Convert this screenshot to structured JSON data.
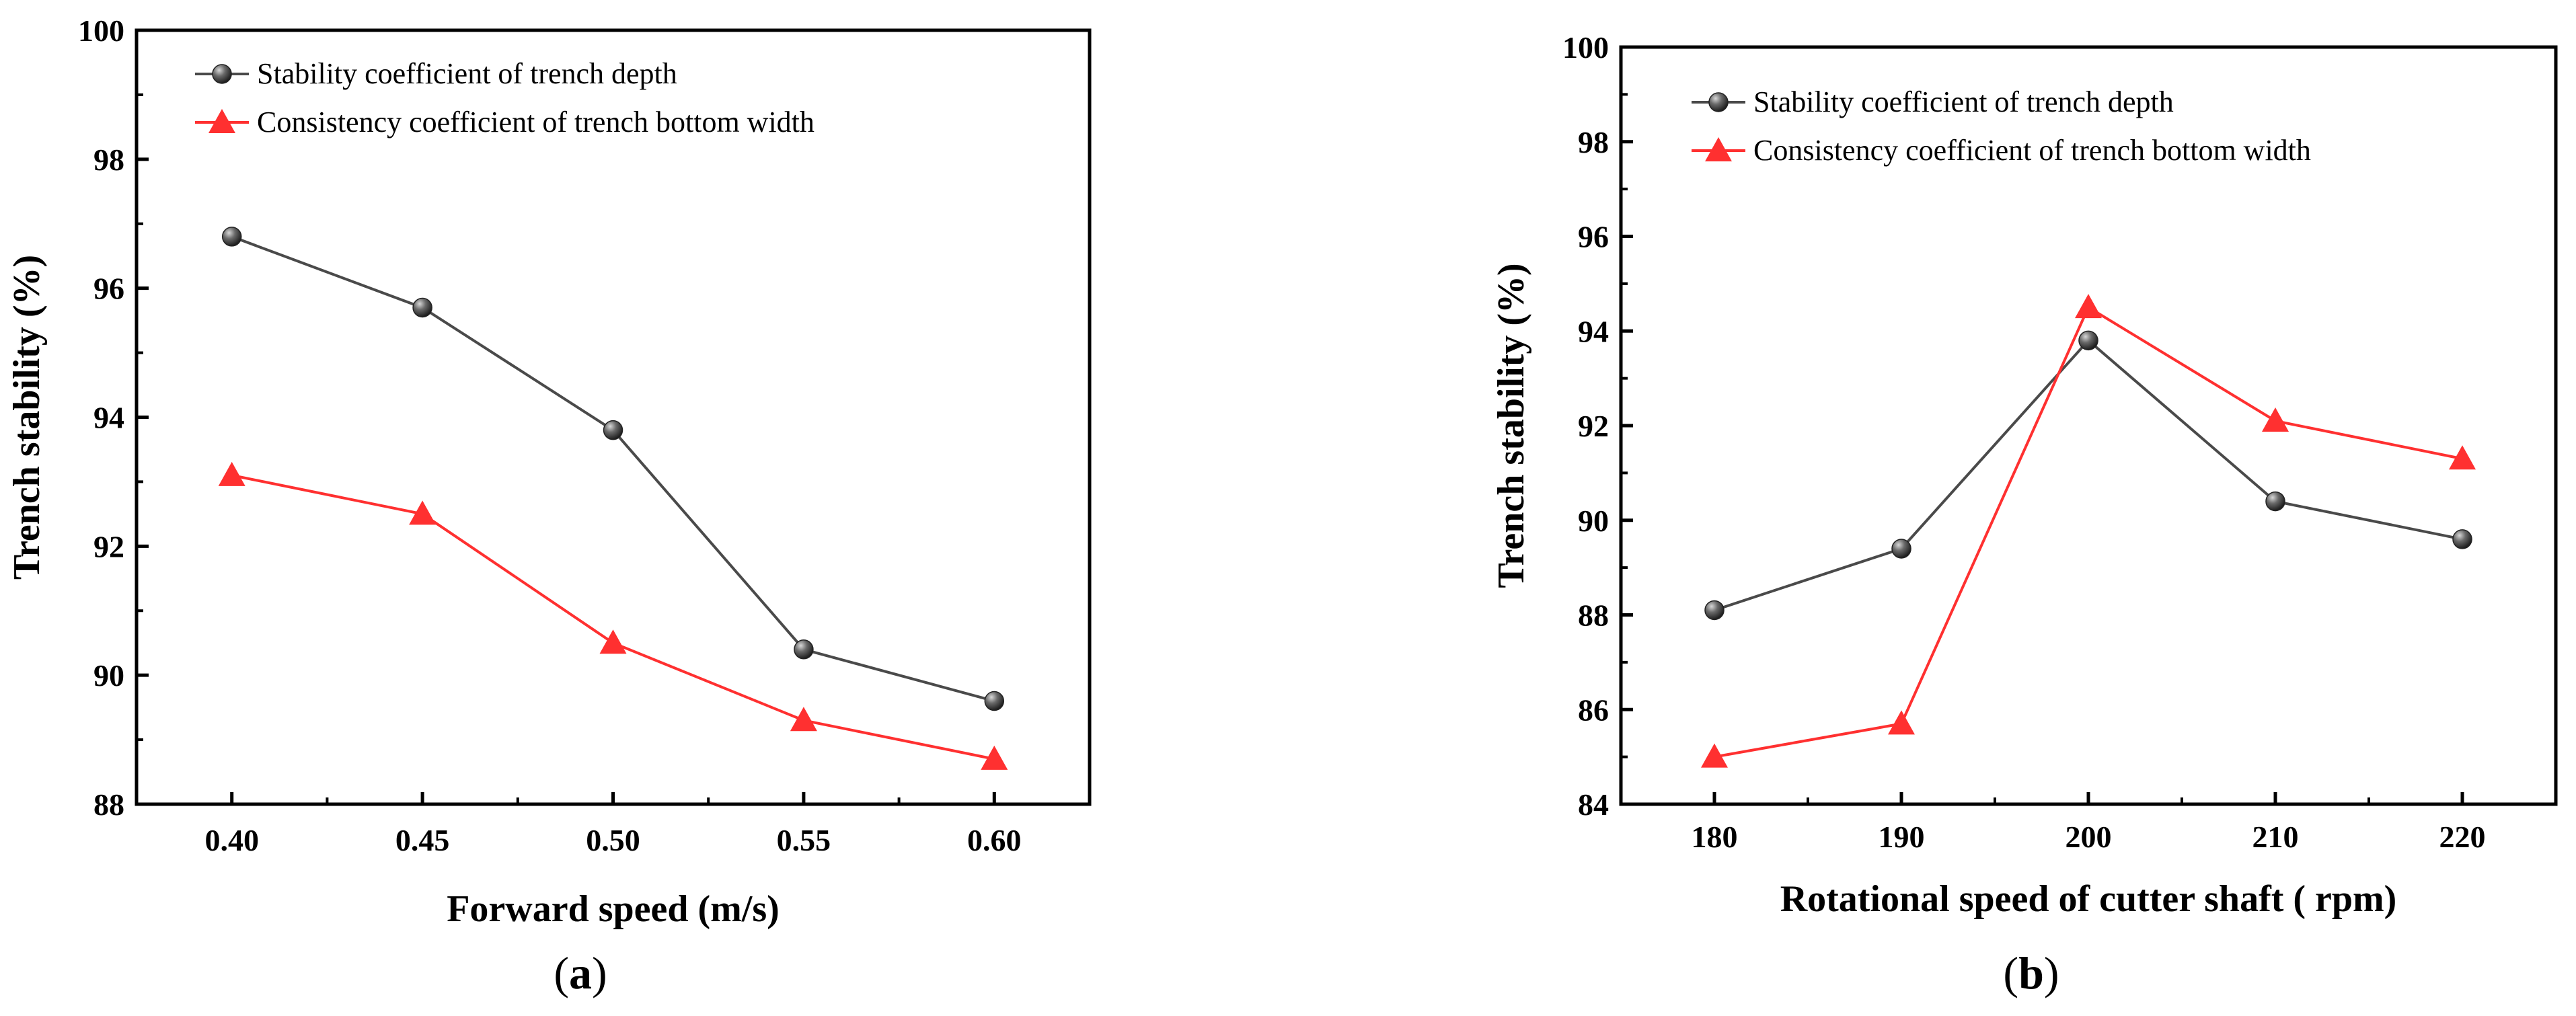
{
  "chart_data": [
    {
      "type": "line",
      "panel_label": "(a)",
      "panel_letter": "a",
      "xlabel": "Forward speed (m/s)",
      "ylabel": "Trench stability (%)",
      "x": [
        0.4,
        0.45,
        0.5,
        0.55,
        0.6
      ],
      "x_tick_labels": [
        "0.40",
        "0.45",
        "0.50",
        "0.55",
        "0.60"
      ],
      "xlim": [
        0.375,
        0.625
      ],
      "ylim": [
        88,
        100
      ],
      "y_ticks": [
        88,
        90,
        92,
        94,
        96,
        98,
        100
      ],
      "legend_position": "top-left",
      "series": [
        {
          "name": "Stability coefficient of trench depth",
          "marker": "sphere",
          "color": "#4a4a4a",
          "values": [
            96.8,
            95.7,
            93.8,
            90.4,
            89.6
          ]
        },
        {
          "name": "Consistency coefficient of trench bottom width",
          "marker": "triangle",
          "color": "#ff3030",
          "values": [
            93.1,
            92.5,
            90.5,
            89.3,
            88.7
          ]
        }
      ]
    },
    {
      "type": "line",
      "panel_label": "(b)",
      "panel_letter": "b",
      "xlabel": "Rotational speed of cutter shaft ( rpm)",
      "ylabel": "Trench stability (%)",
      "x": [
        180,
        190,
        200,
        210,
        220
      ],
      "x_tick_labels": [
        "180",
        "190",
        "200",
        "210",
        "220"
      ],
      "xlim": [
        175,
        225
      ],
      "ylim": [
        84,
        100
      ],
      "y_ticks": [
        84,
        86,
        88,
        90,
        92,
        94,
        96,
        98,
        100
      ],
      "legend_position": "top-left",
      "series": [
        {
          "name": "Stability coefficient of trench depth",
          "marker": "sphere",
          "color": "#4a4a4a",
          "values": [
            88.1,
            89.4,
            93.8,
            90.4,
            89.6
          ]
        },
        {
          "name": "Consistency coefficient of trench bottom width",
          "marker": "triangle",
          "color": "#ff3030",
          "values": [
            85.0,
            85.7,
            94.5,
            92.1,
            91.3
          ]
        }
      ]
    }
  ]
}
